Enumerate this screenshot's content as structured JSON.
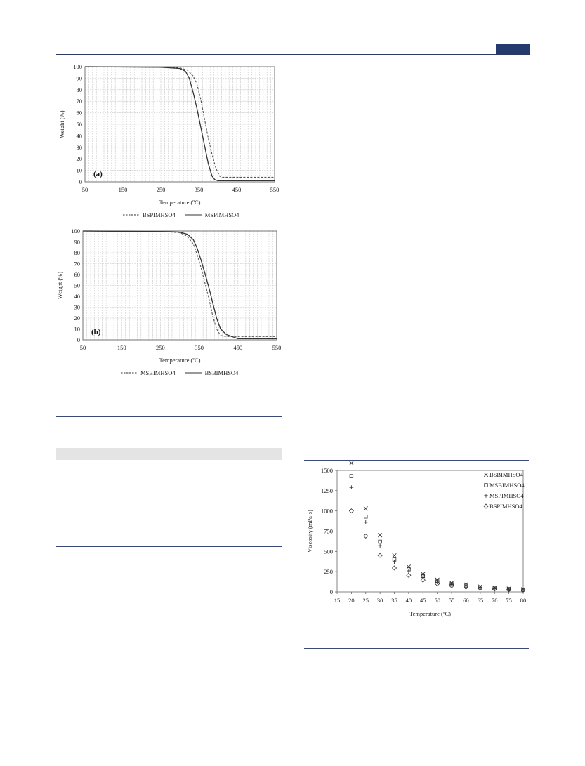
{
  "chart_data": [
    {
      "type": "line",
      "panel_label": "(a)",
      "xlabel": "Temperature (ºC)",
      "ylabel": "Weight (%)",
      "xlim": [
        50,
        550
      ],
      "ylim": [
        0,
        100
      ],
      "xticks": [
        50,
        150,
        250,
        350,
        450,
        550
      ],
      "yticks": [
        0,
        10,
        20,
        30,
        40,
        50,
        60,
        70,
        80,
        90,
        100
      ],
      "grid": true,
      "legend_position": "bottom",
      "series": [
        {
          "name": "BSPIMHSO4",
          "style": "dashed",
          "x": [
            50,
            250,
            300,
            320,
            335,
            345,
            355,
            365,
            375,
            385,
            395,
            405,
            412,
            430,
            550
          ],
          "y": [
            100,
            99.5,
            99,
            97,
            92,
            85,
            72,
            55,
            38,
            24,
            12,
            5,
            4,
            4,
            4
          ]
        },
        {
          "name": "MSPIMHSO4",
          "style": "solid",
          "x": [
            50,
            250,
            300,
            315,
            325,
            335,
            345,
            355,
            365,
            375,
            385,
            392,
            400,
            420,
            550
          ],
          "y": [
            100,
            99.5,
            98.5,
            96,
            90,
            78,
            64,
            48,
            32,
            16,
            5,
            2,
            1,
            1,
            1
          ]
        }
      ]
    },
    {
      "type": "line",
      "panel_label": "(b)",
      "xlabel": "Temperature (ºC)",
      "ylabel": "Weight (%)",
      "xlim": [
        50,
        550
      ],
      "ylim": [
        0,
        100
      ],
      "xticks": [
        50,
        150,
        250,
        350,
        450,
        550
      ],
      "yticks": [
        0,
        10,
        20,
        30,
        40,
        50,
        60,
        70,
        80,
        90,
        100
      ],
      "grid": true,
      "legend_position": "bottom",
      "series": [
        {
          "name": "MSBIMHSO4",
          "style": "dashed",
          "x": [
            50,
            250,
            300,
            320,
            335,
            345,
            355,
            365,
            375,
            385,
            395,
            405,
            420,
            450,
            550
          ],
          "y": [
            100,
            99.5,
            98.5,
            95,
            88,
            78,
            66,
            52,
            38,
            22,
            10,
            4,
            3,
            3,
            3
          ]
        },
        {
          "name": "BSBIMHSO4",
          "style": "solid",
          "x": [
            50,
            250,
            300,
            320,
            335,
            345,
            355,
            365,
            375,
            385,
            395,
            405,
            420,
            450,
            550
          ],
          "y": [
            100,
            99.5,
            99,
            97,
            92,
            84,
            73,
            61,
            48,
            34,
            20,
            10,
            5,
            1,
            1
          ]
        }
      ]
    },
    {
      "type": "scatter",
      "xlabel": "Temperature (ºC)",
      "ylabel": "Viscosity (mPa·s)",
      "xlim": [
        15,
        80
      ],
      "ylim": [
        0,
        1500
      ],
      "xticks": [
        15,
        20,
        25,
        30,
        35,
        40,
        45,
        50,
        55,
        60,
        65,
        70,
        75,
        80
      ],
      "yticks": [
        0,
        250,
        500,
        750,
        1000,
        1250,
        1500
      ],
      "grid": false,
      "legend_position": "top-right",
      "series": [
        {
          "name": "BSBIMHSO4",
          "marker": "x",
          "x": [
            20,
            25,
            30,
            35,
            40,
            45,
            50,
            55,
            60,
            65,
            70,
            75,
            80
          ],
          "y": [
            1590,
            1030,
            700,
            450,
            310,
            220,
            150,
            110,
            90,
            65,
            50,
            40,
            32
          ]
        },
        {
          "name": "MSBIMHSO4",
          "marker": "square",
          "x": [
            20,
            25,
            30,
            35,
            40,
            45,
            50,
            55,
            60,
            65,
            70,
            75,
            80
          ],
          "y": [
            1430,
            930,
            620,
            400,
            280,
            195,
            130,
            95,
            75,
            55,
            42,
            35,
            28
          ]
        },
        {
          "name": "MSPIMHSO4",
          "marker": "plus",
          "x": [
            20,
            25,
            30,
            35,
            40,
            45,
            50,
            55,
            60,
            65,
            70,
            75,
            80
          ],
          "y": [
            1290,
            860,
            570,
            370,
            260,
            180,
            120,
            88,
            70,
            50,
            40,
            32,
            25
          ]
        },
        {
          "name": "BSPIMHSO4",
          "marker": "diamond",
          "x": [
            20,
            25,
            30,
            35,
            40,
            45,
            50,
            55,
            60,
            65,
            70,
            75,
            80
          ],
          "y": [
            1000,
            690,
            450,
            295,
            205,
            145,
            100,
            75,
            58,
            45,
            35,
            28,
            22
          ]
        }
      ]
    }
  ]
}
